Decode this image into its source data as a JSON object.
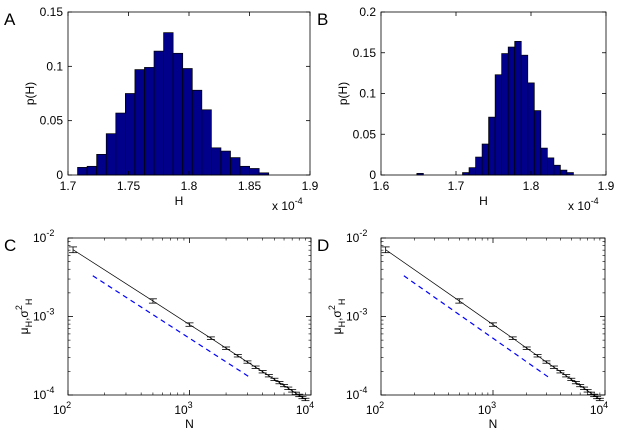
{
  "colors": {
    "bar_fill": "#00008B",
    "bar_edge": "#000000",
    "fit_line": "#000000",
    "ref_line": "#0000FF",
    "errbar": "#000000"
  },
  "chart_data": [
    {
      "panel_label": "A",
      "type": "bar",
      "xlabel": "H",
      "ylabel": "p(H)",
      "x_multiplier": "x 10",
      "x_multiplier_exp": "-4",
      "xlim": [
        1.7,
        1.9
      ],
      "ylim": [
        0,
        0.15
      ],
      "xticks": [
        "1.7",
        "1.75",
        "1.8",
        "1.85",
        "1.9"
      ],
      "xtick_values": [
        1.7,
        1.75,
        1.8,
        1.85,
        1.9
      ],
      "yticks": [
        "0",
        "0.05",
        "0.1",
        "0.15"
      ],
      "ytick_values": [
        0,
        0.05,
        0.1,
        0.15
      ],
      "bin_edges": [
        1.7079,
        1.7158,
        1.7237,
        1.7316,
        1.7395,
        1.7474,
        1.7553,
        1.7632,
        1.7711,
        1.779,
        1.7869,
        1.7948,
        1.8027,
        1.8106,
        1.8185,
        1.8264,
        1.8343,
        1.8422,
        1.8501,
        1.858,
        1.8659
      ],
      "values": [
        0.007,
        0.008,
        0.019,
        0.038,
        0.057,
        0.075,
        0.097,
        0.099,
        0.114,
        0.131,
        0.112,
        0.098,
        0.078,
        0.06,
        0.025,
        0.022,
        0.016,
        0.008,
        0.006,
        0.002
      ]
    },
    {
      "panel_label": "B",
      "type": "bar",
      "xlabel": "H",
      "ylabel": "p(H)",
      "x_multiplier": "x 10",
      "x_multiplier_exp": "-4",
      "xlim": [
        1.6,
        1.9
      ],
      "ylim": [
        0,
        0.2
      ],
      "xticks": [
        "1.6",
        "1.7",
        "1.8",
        "1.9"
      ],
      "xtick_values": [
        1.6,
        1.7,
        1.8,
        1.9
      ],
      "yticks": [
        "0",
        "0.05",
        "0.1",
        "0.15",
        "0.2"
      ],
      "ytick_values": [
        0,
        0.05,
        0.1,
        0.15,
        0.2
      ],
      "bin_edges": [
        1.6478,
        1.6565,
        1.6652,
        1.6739,
        1.6826,
        1.6913,
        1.7,
        1.7087,
        1.7174,
        1.7261,
        1.7348,
        1.7435,
        1.7522,
        1.7609,
        1.7696,
        1.7783,
        1.787,
        1.7957,
        1.8044,
        1.8131,
        1.8218,
        1.8305,
        1.8392,
        1.8479,
        1.8566
      ],
      "values": [
        0.002,
        0.0,
        0.0,
        0.0,
        0.0,
        0.0,
        0.0,
        0.003,
        0.009,
        0.022,
        0.038,
        0.071,
        0.123,
        0.149,
        0.157,
        0.164,
        0.147,
        0.113,
        0.079,
        0.033,
        0.021,
        0.012,
        0.006,
        0.003
      ]
    },
    {
      "panel_label": "C",
      "type": "line",
      "scale": "loglog",
      "xlabel": "N",
      "ylabel": "μH,σ²H",
      "ylabel_main": "μ",
      "ylabel_sub1": "H",
      "ylabel_sep": ",σ",
      "ylabel_sup": "2",
      "ylabel_sub2": "H",
      "xlim": [
        100,
        10000
      ],
      "ylim": [
        0.0001,
        0.01
      ],
      "xticks": [
        {
          "base": "10",
          "exp": "2",
          "value": 100
        },
        {
          "base": "10",
          "exp": "3",
          "value": 1000
        },
        {
          "base": "10",
          "exp": "4",
          "value": 10000
        }
      ],
      "yticks": [
        {
          "base": "10",
          "exp": "-4",
          "value": 0.0001
        },
        {
          "base": "10",
          "exp": "-3",
          "value": 0.001
        },
        {
          "base": "10",
          "exp": "-2",
          "value": 0.01
        }
      ],
      "series": [
        {
          "name": "mean_H",
          "style": "solid-with-errorbars",
          "x": [
            110,
            500,
            1000,
            1500,
            2000,
            2500,
            3000,
            3500,
            4000,
            4500,
            5000,
            5500,
            6000,
            6500,
            7000,
            7500,
            8000,
            8500,
            9000
          ],
          "y": [
            0.0071,
            0.00158,
            0.00079,
            0.00053,
            0.000395,
            0.000316,
            0.000263,
            0.000226,
            0.000198,
            0.000176,
            0.000158,
            0.000144,
            0.000132,
            0.000122,
            0.000113,
            0.000105,
            9.88e-05,
            9.3e-05,
            8.78e-05
          ],
          "err": [
            0.0006,
            0.0001,
            4e-05,
            2e-05,
            1.4e-05,
            1.1e-05,
            9e-06,
            8e-06,
            7e-06,
            6e-06,
            5.5e-06,
            5e-06,
            4.5e-06,
            4.2e-06,
            4e-06,
            3.7e-06,
            3.5e-06,
            3.3e-06,
            3.1e-06
          ]
        },
        {
          "name": "variance_H",
          "style": "dashed",
          "x": [
            160,
            3200
          ],
          "y": [
            0.0033,
            0.000165
          ]
        }
      ]
    },
    {
      "panel_label": "D",
      "type": "line",
      "scale": "loglog",
      "xlabel": "N",
      "ylabel": "μH,σ²H",
      "ylabel_main": "μ",
      "ylabel_sub1": "H",
      "ylabel_sep": ",σ",
      "ylabel_sup": "2",
      "ylabel_sub2": "H",
      "xlim": [
        100,
        10000
      ],
      "ylim": [
        0.0001,
        0.01
      ],
      "xticks": [
        {
          "base": "10",
          "exp": "2",
          "value": 100
        },
        {
          "base": "10",
          "exp": "3",
          "value": 1000
        },
        {
          "base": "10",
          "exp": "4",
          "value": 10000
        }
      ],
      "yticks": [
        {
          "base": "10",
          "exp": "-4",
          "value": 0.0001
        },
        {
          "base": "10",
          "exp": "-3",
          "value": 0.001
        },
        {
          "base": "10",
          "exp": "-2",
          "value": 0.01
        }
      ],
      "series": [
        {
          "name": "mean_H",
          "style": "solid-with-errorbars",
          "x": [
            110,
            500,
            1000,
            1500,
            2000,
            2500,
            3000,
            3500,
            4000,
            4500,
            5000,
            5500,
            6000,
            6500,
            7000,
            7500,
            8000,
            8500,
            9000
          ],
          "y": [
            0.0071,
            0.00158,
            0.00079,
            0.00053,
            0.000395,
            0.000316,
            0.000263,
            0.000226,
            0.000198,
            0.000176,
            0.000158,
            0.000144,
            0.000132,
            0.000122,
            0.000113,
            0.000105,
            9.88e-05,
            9.3e-05,
            8.78e-05
          ],
          "err": [
            0.0006,
            0.0001,
            4e-05,
            2e-05,
            1.4e-05,
            1.1e-05,
            9e-06,
            8e-06,
            7e-06,
            6e-06,
            5.5e-06,
            5e-06,
            4.5e-06,
            4.2e-06,
            4e-06,
            3.7e-06,
            3.5e-06,
            3.3e-06,
            3.1e-06
          ]
        },
        {
          "name": "variance_H",
          "style": "dashed",
          "x": [
            160,
            3200
          ],
          "y": [
            0.0033,
            0.000165
          ]
        }
      ]
    }
  ]
}
